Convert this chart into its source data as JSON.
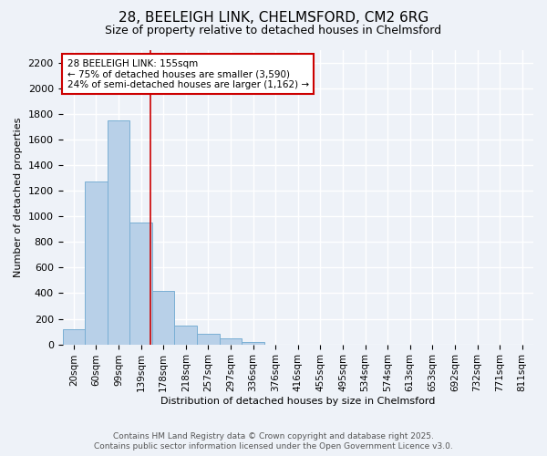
{
  "title1": "28, BEELEIGH LINK, CHELMSFORD, CM2 6RG",
  "title2": "Size of property relative to detached houses in Chelmsford",
  "xlabel": "Distribution of detached houses by size in Chelmsford",
  "ylabel": "Number of detached properties",
  "bins": [
    "20sqm",
    "60sqm",
    "99sqm",
    "139sqm",
    "178sqm",
    "218sqm",
    "257sqm",
    "297sqm",
    "336sqm",
    "376sqm",
    "416sqm",
    "455sqm",
    "495sqm",
    "534sqm",
    "574sqm",
    "613sqm",
    "653sqm",
    "692sqm",
    "732sqm",
    "771sqm",
    "811sqm"
  ],
  "counts": [
    120,
    1270,
    1750,
    950,
    415,
    150,
    80,
    45,
    22,
    0,
    0,
    0,
    0,
    0,
    0,
    0,
    0,
    0,
    0,
    0,
    0
  ],
  "bar_color": "#b8d0e8",
  "bar_edge_color": "#7aafd4",
  "vline_x": 3.42,
  "annotation_line1": "28 BEELEIGH LINK: 155sqm",
  "annotation_line2": "← 75% of detached houses are smaller (3,590)",
  "annotation_line3": "24% of semi-detached houses are larger (1,162) →",
  "annotation_box_color": "#ffffff",
  "annotation_box_edge_color": "#cc0000",
  "vline_color": "#cc0000",
  "ylim": [
    0,
    2300
  ],
  "yticks": [
    0,
    200,
    400,
    600,
    800,
    1000,
    1200,
    1400,
    1600,
    1800,
    2000,
    2200
  ],
  "footer1": "Contains HM Land Registry data © Crown copyright and database right 2025.",
  "footer2": "Contains public sector information licensed under the Open Government Licence v3.0.",
  "bg_color": "#eef2f8",
  "plot_bg_color": "#eef2f8",
  "grid_color": "#ffffff",
  "title1_fontsize": 11,
  "title2_fontsize": 9,
  "xlabel_fontsize": 8,
  "ylabel_fontsize": 8,
  "tick_fontsize": 8,
  "xtick_fontsize": 7.5,
  "footer_fontsize": 6.5
}
